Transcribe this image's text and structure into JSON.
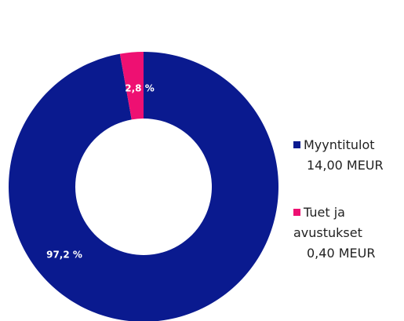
{
  "chart_data": {
    "type": "donut",
    "categories": [
      "Myyntitulot",
      "Tuet ja avustukset"
    ],
    "amount_labels": [
      "14,00 MEUR",
      "0,40 MEUR"
    ],
    "values": [
      97.2,
      2.8
    ],
    "value_labels": [
      "97,2 %",
      "2,8 %"
    ],
    "colors": [
      "#0a1a8f",
      "#ee1072"
    ],
    "legend": "right"
  }
}
